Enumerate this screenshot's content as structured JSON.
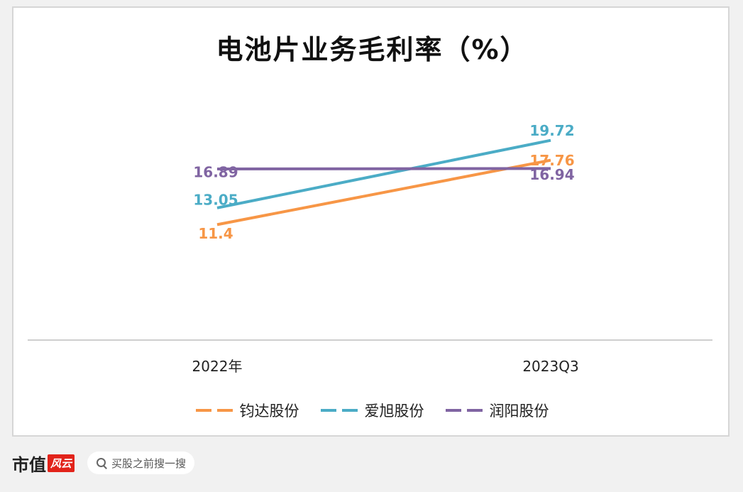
{
  "chart_data": {
    "type": "line",
    "title": "电池片业务毛利率（%）",
    "categories": [
      "2022年",
      "2023Q3"
    ],
    "ylim": [
      0,
      30
    ],
    "grid": false,
    "legend_position": "bottom",
    "series": [
      {
        "name": "钧达股份",
        "values": [
          11.4,
          17.76
        ],
        "labels": [
          "11.4",
          "17.76"
        ],
        "color": "#f79646"
      },
      {
        "name": "爱旭股份",
        "values": [
          13.05,
          19.72
        ],
        "labels": [
          "13.05",
          "19.72"
        ],
        "color": "#4bacc6"
      },
      {
        "name": "润阳股份",
        "values": [
          16.89,
          16.94
        ],
        "labels": [
          "16.89",
          "16.94"
        ],
        "color": "#8064a2"
      }
    ]
  },
  "footer": {
    "brand_text": "市值",
    "brand_seal": "风云",
    "search_placeholder": "买股之前搜一搜"
  }
}
